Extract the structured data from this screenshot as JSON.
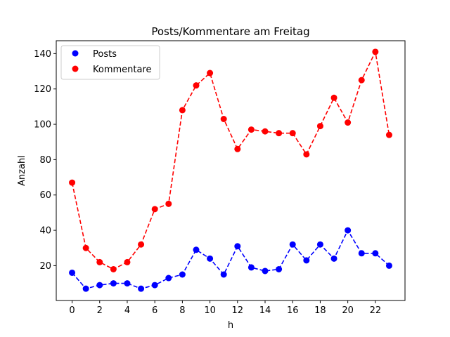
{
  "chart_data": {
    "type": "line",
    "title": "Posts/Kommentare am Freitag",
    "xlabel": "h",
    "ylabel": "Anzahl",
    "xlim": [
      -1.15,
      24.15
    ],
    "ylim": [
      0.3,
      147.3
    ],
    "xticks": [
      0,
      2,
      4,
      6,
      8,
      10,
      12,
      14,
      16,
      18,
      20,
      22
    ],
    "yticks": [
      20,
      40,
      60,
      80,
      100,
      120,
      140
    ],
    "grid": false,
    "legend_position": "top-left",
    "x": [
      0,
      1,
      2,
      3,
      4,
      5,
      6,
      7,
      8,
      9,
      10,
      11,
      12,
      13,
      14,
      15,
      16,
      17,
      18,
      19,
      20,
      21,
      22,
      23
    ],
    "series": [
      {
        "name": "Posts",
        "color": "#0000ff",
        "values": [
          16,
          7,
          9,
          10,
          10,
          7,
          9,
          13,
          15,
          29,
          24,
          15,
          31,
          19,
          17,
          18,
          32,
          23,
          32,
          24,
          40,
          27,
          27,
          20
        ]
      },
      {
        "name": "Kommentare",
        "color": "#ff0000",
        "values": [
          67,
          30,
          22,
          18,
          22,
          32,
          52,
          55,
          108,
          122,
          129,
          103,
          86,
          97,
          96,
          95,
          95,
          83,
          99,
          115,
          101,
          125,
          141,
          94
        ]
      }
    ]
  }
}
